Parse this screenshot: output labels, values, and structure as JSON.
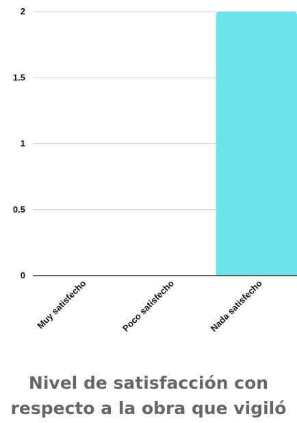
{
  "chart_data": {
    "type": "bar",
    "title": "Nivel de satisfacción con\nrespecto a la obra que vigiló",
    "categories": [
      "Muy satisfecho",
      "Poco satisfecho",
      "Nada satisfecho"
    ],
    "series": [
      {
        "values": [
          0,
          0,
          2
        ]
      }
    ],
    "ylim": [
      0,
      2
    ],
    "yticks": [
      "0",
      "0.5",
      "1",
      "1.5",
      "2"
    ],
    "yticks_values": [
      0,
      0.5,
      1,
      1.5,
      2
    ],
    "grid": true,
    "legend": "none",
    "bar_color": "#6BE3E8",
    "grid_color": "#cccccc",
    "axis_color": "#333333"
  }
}
